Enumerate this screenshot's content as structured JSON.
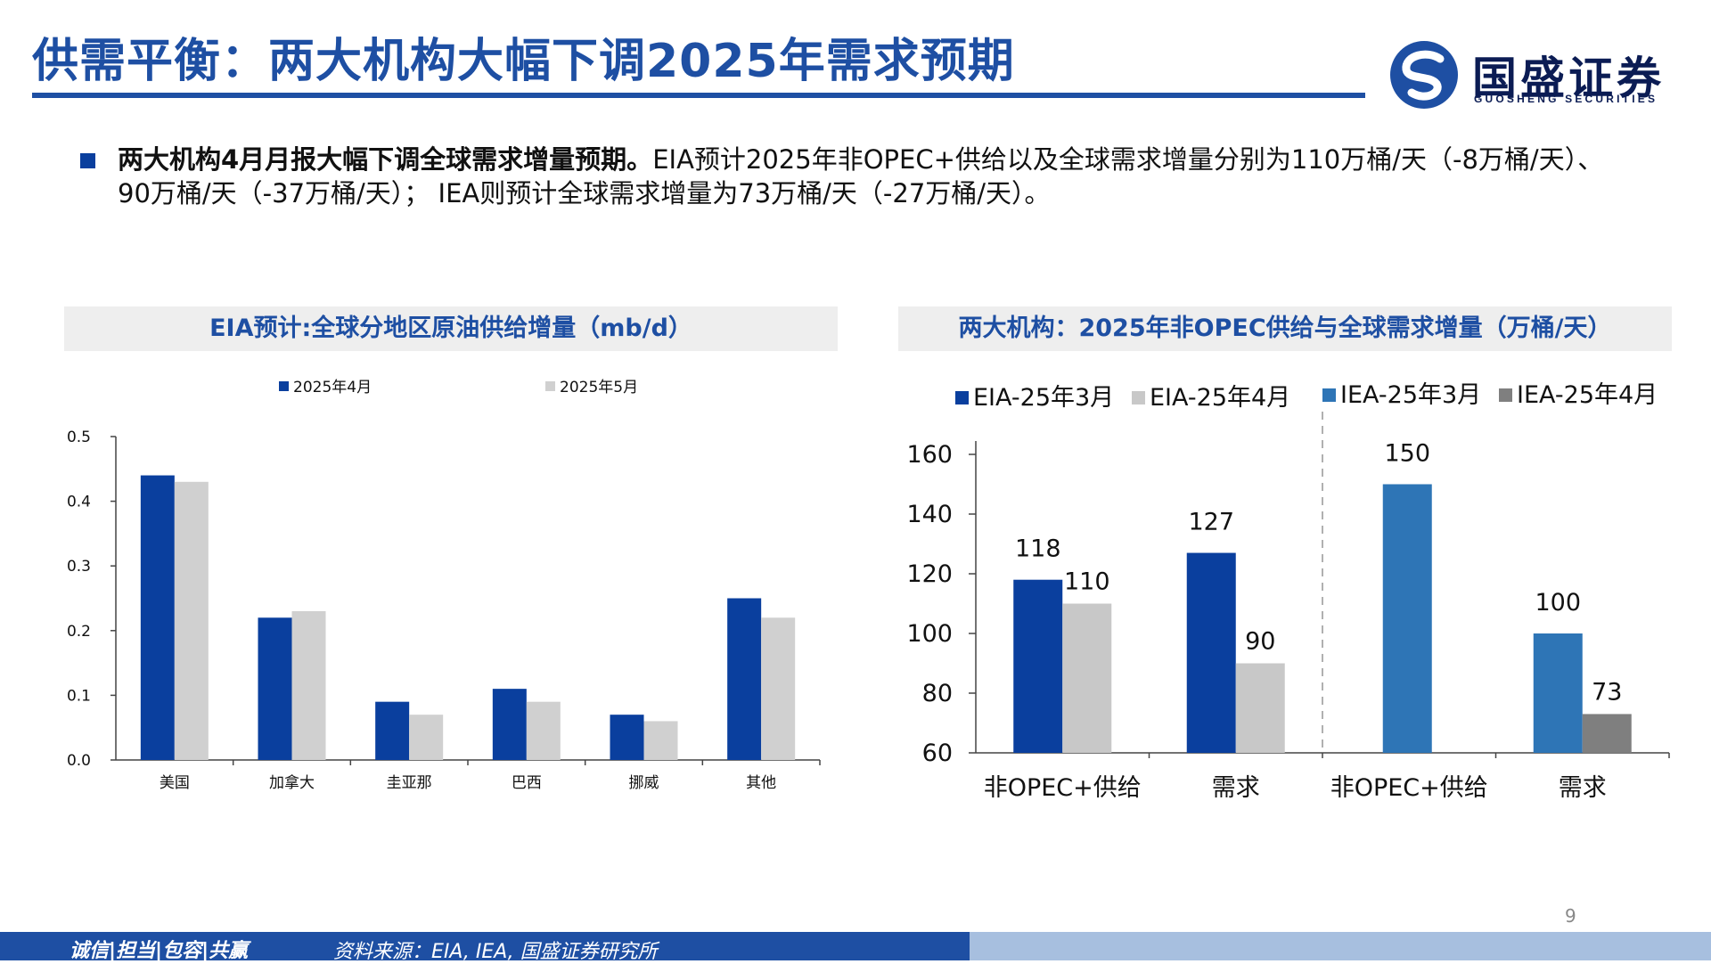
{
  "header": {
    "title": "供需平衡：两大机构大幅下调2025年需求预期",
    "logo_name": "国盛证券",
    "logo_sub": "GUOSHENG SECURITIES"
  },
  "bullet": {
    "bold": "两大机构4月月报大幅下调全球需求增量预期。",
    "text": "EIA预计2025年非OPEC+供给以及全球需求增量分别为110万桶/天（-8万桶/天）、90万桶/天（-37万桶/天）； IEA则预计全球需求增量为73万桶/天（-27万桶/天）。"
  },
  "chart_data": [
    {
      "type": "bar",
      "title": "EIA预计:全球分地区原油供给增量（mb/d）",
      "categories": [
        "美国",
        "加拿大",
        "圭亚那",
        "巴西",
        "挪威",
        "其他"
      ],
      "series": [
        {
          "name": "2025年4月",
          "values": [
            0.44,
            0.22,
            0.09,
            0.11,
            0.07,
            0.25
          ],
          "color": "#0a3f9e"
        },
        {
          "name": "2025年5月",
          "values": [
            0.43,
            0.23,
            0.07,
            0.09,
            0.06,
            0.22
          ],
          "color": "#d0d0d0"
        }
      ],
      "ylim": [
        0.0,
        0.5
      ],
      "yticks": [
        "0.0",
        "0.1",
        "0.2",
        "0.3",
        "0.4",
        "0.5"
      ],
      "legend": "top",
      "grid": false
    },
    {
      "type": "bar",
      "title": "两大机构：2025年非OPEC供给与全球需求增量（万桶/天）",
      "categories": [
        "非OPEC+供给",
        "需求",
        "非OPEC+供给",
        "需求"
      ],
      "series": [
        {
          "name": "EIA-25年3月",
          "values": [
            118,
            127,
            null,
            null
          ],
          "color": "#0a3f9e"
        },
        {
          "name": "EIA-25年4月",
          "values": [
            110,
            90,
            null,
            null
          ],
          "color": "#c8c8c8"
        },
        {
          "name": "IEA-25年3月",
          "values": [
            null,
            null,
            150,
            100
          ],
          "color": "#2e75b6"
        },
        {
          "name": "IEA-25年4月",
          "values": [
            null,
            null,
            null,
            73
          ],
          "color": "#7f7f7f"
        }
      ],
      "data_labels": [
        "118",
        "110",
        "127",
        "90",
        "150",
        "100",
        "73"
      ],
      "ylim": [
        60,
        160
      ],
      "yticks": [
        "60",
        "80",
        "100",
        "120",
        "140",
        "160"
      ],
      "legend": "top",
      "grid": false
    }
  ],
  "footer": {
    "motto": "诚信|担当|包容|共赢",
    "source": "资料来源：EIA, IEA, 国盛证券研究所",
    "page": "9"
  }
}
